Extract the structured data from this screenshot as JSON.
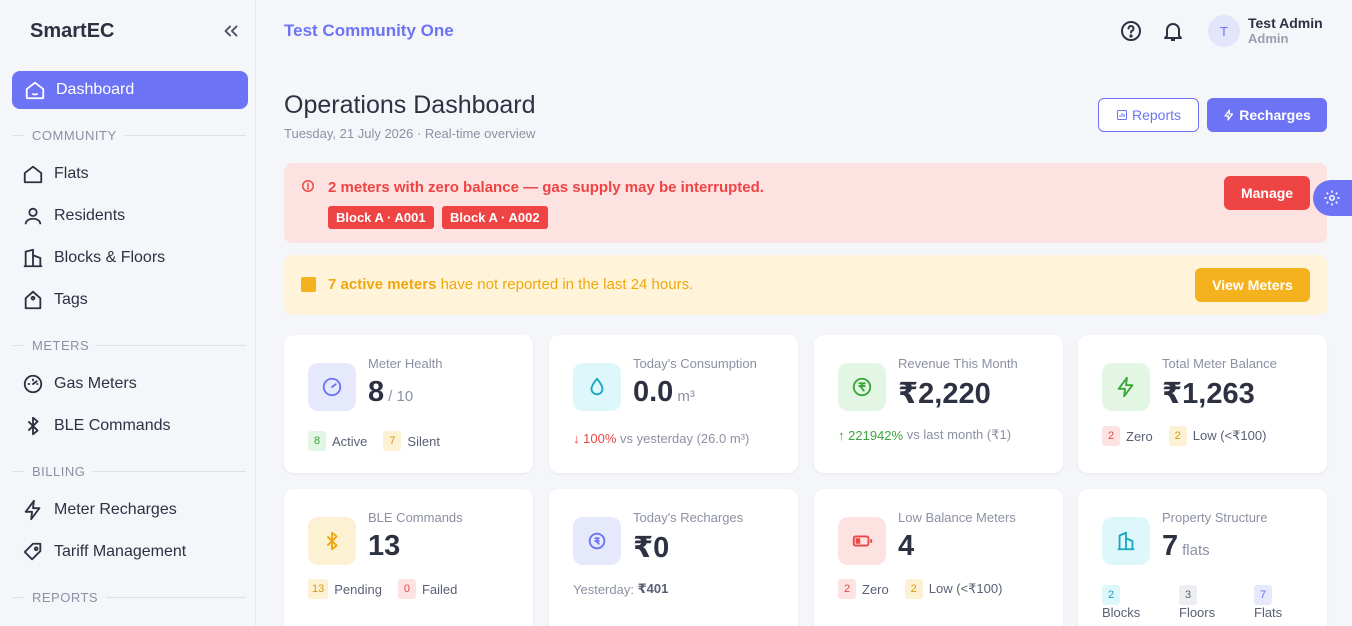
{
  "brand": "SmartEC",
  "sidebar": {
    "active": "Dashboard",
    "sections": [
      "COMMUNITY",
      "METERS",
      "BILLING",
      "REPORTS"
    ],
    "items": [
      "Flats",
      "Residents",
      "Blocks & Floors",
      "Tags",
      "Gas Meters",
      "BLE Commands",
      "Meter Recharges",
      "Tariff Management"
    ]
  },
  "header": {
    "community": "Test Community One",
    "avatar_initial": "T",
    "user_name": "Test Admin",
    "user_role": "Admin"
  },
  "page": {
    "title": "Operations Dashboard",
    "subtitle": "Tuesday, 21 July 2026 · Real-time overview",
    "reports_label": "Reports",
    "recharges_label": "Recharges"
  },
  "alert_zero": {
    "message": "2 meters with zero balance — gas supply may be interrupted.",
    "tags": [
      "Block A · A001",
      "Block A · A002"
    ],
    "action": "Manage"
  },
  "alert_silent": {
    "bold": "7 active meters",
    "rest": " have not reported in the last 24 hours.",
    "action": "View Meters"
  },
  "cards": {
    "meter_health": {
      "title": "Meter Health",
      "value": "8",
      "unit": "/ 10",
      "active_count": "8",
      "active_label": "Active",
      "silent_count": "7",
      "silent_label": "Silent"
    },
    "consumption": {
      "title": "Today's Consumption",
      "value": "0.0",
      "unit": "m³",
      "pct": "100%",
      "rest": "vs yesterday (26.0 m³)"
    },
    "revenue": {
      "title": "Revenue This Month",
      "value": "₹2,220",
      "pct": "221942%",
      "rest": "vs last month (₹1)"
    },
    "balance": {
      "title": "Total Meter Balance",
      "value": "₹1,263",
      "zero_count": "2",
      "zero_label": "Zero",
      "low_count": "2",
      "low_label": "Low (<₹100)"
    },
    "ble": {
      "title": "BLE Commands",
      "value": "13",
      "pending_count": "13",
      "pending_label": "Pending",
      "failed_count": "0",
      "failed_label": "Failed"
    },
    "recharges": {
      "title": "Today's Recharges",
      "value": "₹0",
      "yesterday_label": "Yesterday:",
      "yesterday_value": "₹401"
    },
    "low_balance": {
      "title": "Low Balance Meters",
      "value": "4",
      "zero_count": "2",
      "zero_label": "Zero",
      "low_count": "2",
      "low_label": "Low (<₹100)"
    },
    "property": {
      "title": "Property Structure",
      "value": "7",
      "unit": "flats",
      "blocks_count": "2",
      "blocks_label": "Blocks",
      "floors_count": "3",
      "floors_label": "Floors",
      "flats_count": "7",
      "flats_label": "Flats"
    }
  },
  "colors": {
    "accent": "#6c74f5",
    "danger": "#ef4444",
    "warning": "#f5b21f"
  },
  "icons": [
    "home-icon",
    "collapse-icon",
    "help-icon",
    "bell-icon",
    "gear-icon",
    "bluetooth-icon",
    "bolt-icon",
    "tag-icon",
    "gauge-icon",
    "drop-icon",
    "rupee-icon",
    "battery-icon",
    "building-icon",
    "user-icon"
  ]
}
